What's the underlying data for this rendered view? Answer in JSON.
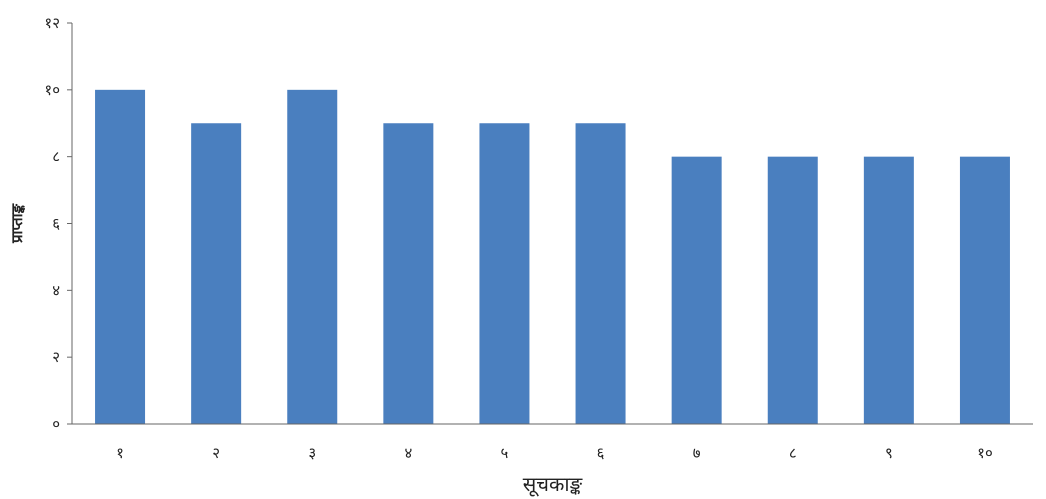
{
  "chart_data": {
    "type": "bar",
    "title": "",
    "xlabel": "सूचकाङ्क",
    "ylabel": "प्राप्ताङ्क",
    "categories": [
      "१",
      "२",
      "३",
      "४",
      "५",
      "६",
      "७",
      "८",
      "९",
      "१०"
    ],
    "values": [
      10,
      9,
      10,
      9,
      9,
      9,
      8,
      8,
      8,
      8
    ],
    "ylim": [
      0,
      12
    ],
    "yticks": [
      {
        "value": 0,
        "label": "०"
      },
      {
        "value": 2,
        "label": "२"
      },
      {
        "value": 4,
        "label": "४"
      },
      {
        "value": 6,
        "label": "६"
      },
      {
        "value": 8,
        "label": "८"
      },
      {
        "value": 10,
        "label": "१०"
      },
      {
        "value": 12,
        "label": "१२"
      }
    ],
    "grid": false,
    "legend": "none",
    "bar_color": "#4a7fbf"
  }
}
